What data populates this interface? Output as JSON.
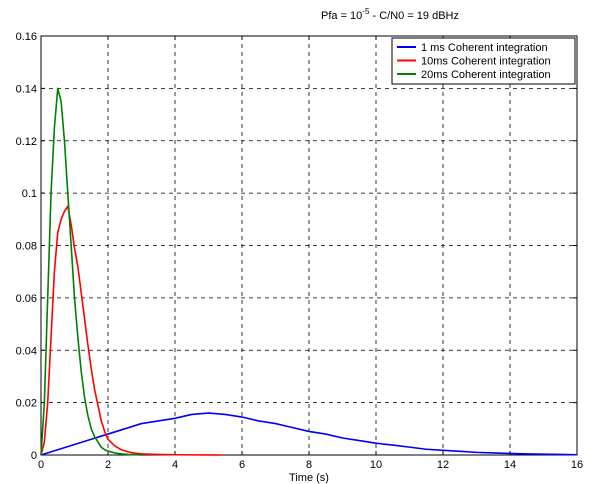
{
  "chart_data": {
    "type": "line",
    "title": {
      "prefix": "Pfa = 10",
      "exponent": "-5",
      "suffix": " - C/N0 = 19 dBHz"
    },
    "xlabel": "Time (s)",
    "ylabel": "",
    "xlim": [
      0,
      16
    ],
    "ylim": [
      0,
      0.16
    ],
    "xticks": [
      0,
      2,
      4,
      6,
      8,
      10,
      12,
      14,
      16
    ],
    "yticks": [
      0,
      0.02,
      0.04,
      0.06,
      0.08,
      0.1,
      0.12,
      0.14,
      0.16
    ],
    "xtick_labels": [
      "0",
      "2",
      "4",
      "6",
      "8",
      "10",
      "12",
      "14",
      "16"
    ],
    "ytick_labels": [
      "0",
      "0.02",
      "0.04",
      "0.06",
      "0.08",
      "0.1",
      "0.12",
      "0.14",
      "0.16"
    ],
    "grid": true,
    "legend_position": "top-right",
    "series": [
      {
        "name": "1 ms Coherent integration",
        "color": "#0000ff",
        "x": [
          0,
          0.5,
          1,
          1.5,
          2,
          2.5,
          3,
          3.5,
          4,
          4.5,
          5,
          5.5,
          6,
          6.5,
          7,
          7.5,
          8,
          8.5,
          9,
          9.5,
          10,
          10.5,
          11,
          11.5,
          12,
          12.5,
          13,
          13.5,
          14,
          14.5,
          15,
          15.5,
          16
        ],
        "y": [
          0,
          0.002,
          0.004,
          0.006,
          0.008,
          0.01,
          0.012,
          0.013,
          0.014,
          0.0155,
          0.016,
          0.0155,
          0.0145,
          0.013,
          0.012,
          0.0105,
          0.009,
          0.008,
          0.0065,
          0.0055,
          0.0045,
          0.0038,
          0.003,
          0.0022,
          0.0018,
          0.0014,
          0.001,
          0.0008,
          0.0006,
          0.0004,
          0.0003,
          0.0002,
          0.0001
        ]
      },
      {
        "name": "10ms Coherent integration",
        "color": "#ff0000",
        "x": [
          0,
          0.1,
          0.2,
          0.3,
          0.4,
          0.5,
          0.6,
          0.7,
          0.8,
          0.9,
          1.0,
          1.1,
          1.2,
          1.3,
          1.4,
          1.5,
          1.6,
          1.7,
          1.8,
          1.9,
          2.0,
          2.2,
          2.4,
          2.6,
          2.8,
          3.0,
          3.5,
          4.0,
          4.5,
          5.0,
          5.4
        ],
        "y": [
          0,
          0.005,
          0.02,
          0.045,
          0.07,
          0.085,
          0.09,
          0.093,
          0.095,
          0.088,
          0.079,
          0.072,
          0.062,
          0.052,
          0.042,
          0.033,
          0.025,
          0.019,
          0.013,
          0.009,
          0.006,
          0.0035,
          0.002,
          0.0012,
          0.0007,
          0.0004,
          0.0002,
          0.0001,
          5e-05,
          2e-05,
          0
        ]
      },
      {
        "name": "20ms Coherent integration",
        "color": "#008000",
        "x": [
          0,
          0.1,
          0.2,
          0.3,
          0.4,
          0.5,
          0.6,
          0.7,
          0.8,
          0.9,
          1.0,
          1.1,
          1.2,
          1.3,
          1.4,
          1.5,
          1.6,
          1.7,
          1.8,
          1.9,
          2.0,
          2.2,
          2.4,
          2.6,
          3.0
        ],
        "y": [
          0,
          0.02,
          0.06,
          0.1,
          0.125,
          0.14,
          0.135,
          0.12,
          0.1,
          0.08,
          0.06,
          0.045,
          0.032,
          0.022,
          0.015,
          0.01,
          0.007,
          0.005,
          0.003,
          0.002,
          0.0015,
          0.0008,
          0.0004,
          0.0002,
          0
        ]
      }
    ]
  }
}
